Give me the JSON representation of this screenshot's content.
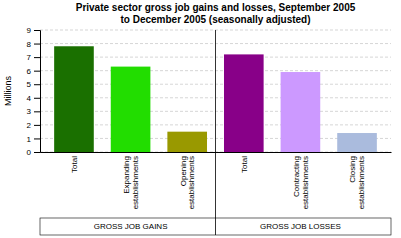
{
  "chart_data": {
    "type": "bar",
    "title": "Private sector gross job gains and losses, September 2005\nto December 2005 (seasonally adjusted)",
    "y_label": "Millions",
    "categories": [
      "Total",
      "Expanding\nestablishments",
      "Opening\nestablishments",
      "Total",
      "Contracting\nestablishments",
      "Closing\nestablishments"
    ],
    "values": [
      7.8,
      6.3,
      1.5,
      7.2,
      5.9,
      1.4
    ],
    "colors": [
      "#1a7000",
      "#22dd00",
      "#999900",
      "#880088",
      "#cc99ff",
      "#aabbdd"
    ],
    "annotations": [
      "GROSS JOB GAINS",
      "GROSS JOB LOSSES"
    ],
    "ylim": [
      0,
      9
    ],
    "yticks": [
      0,
      1,
      2,
      3,
      4,
      5,
      6,
      7,
      8,
      9
    ],
    "grid": true
  }
}
